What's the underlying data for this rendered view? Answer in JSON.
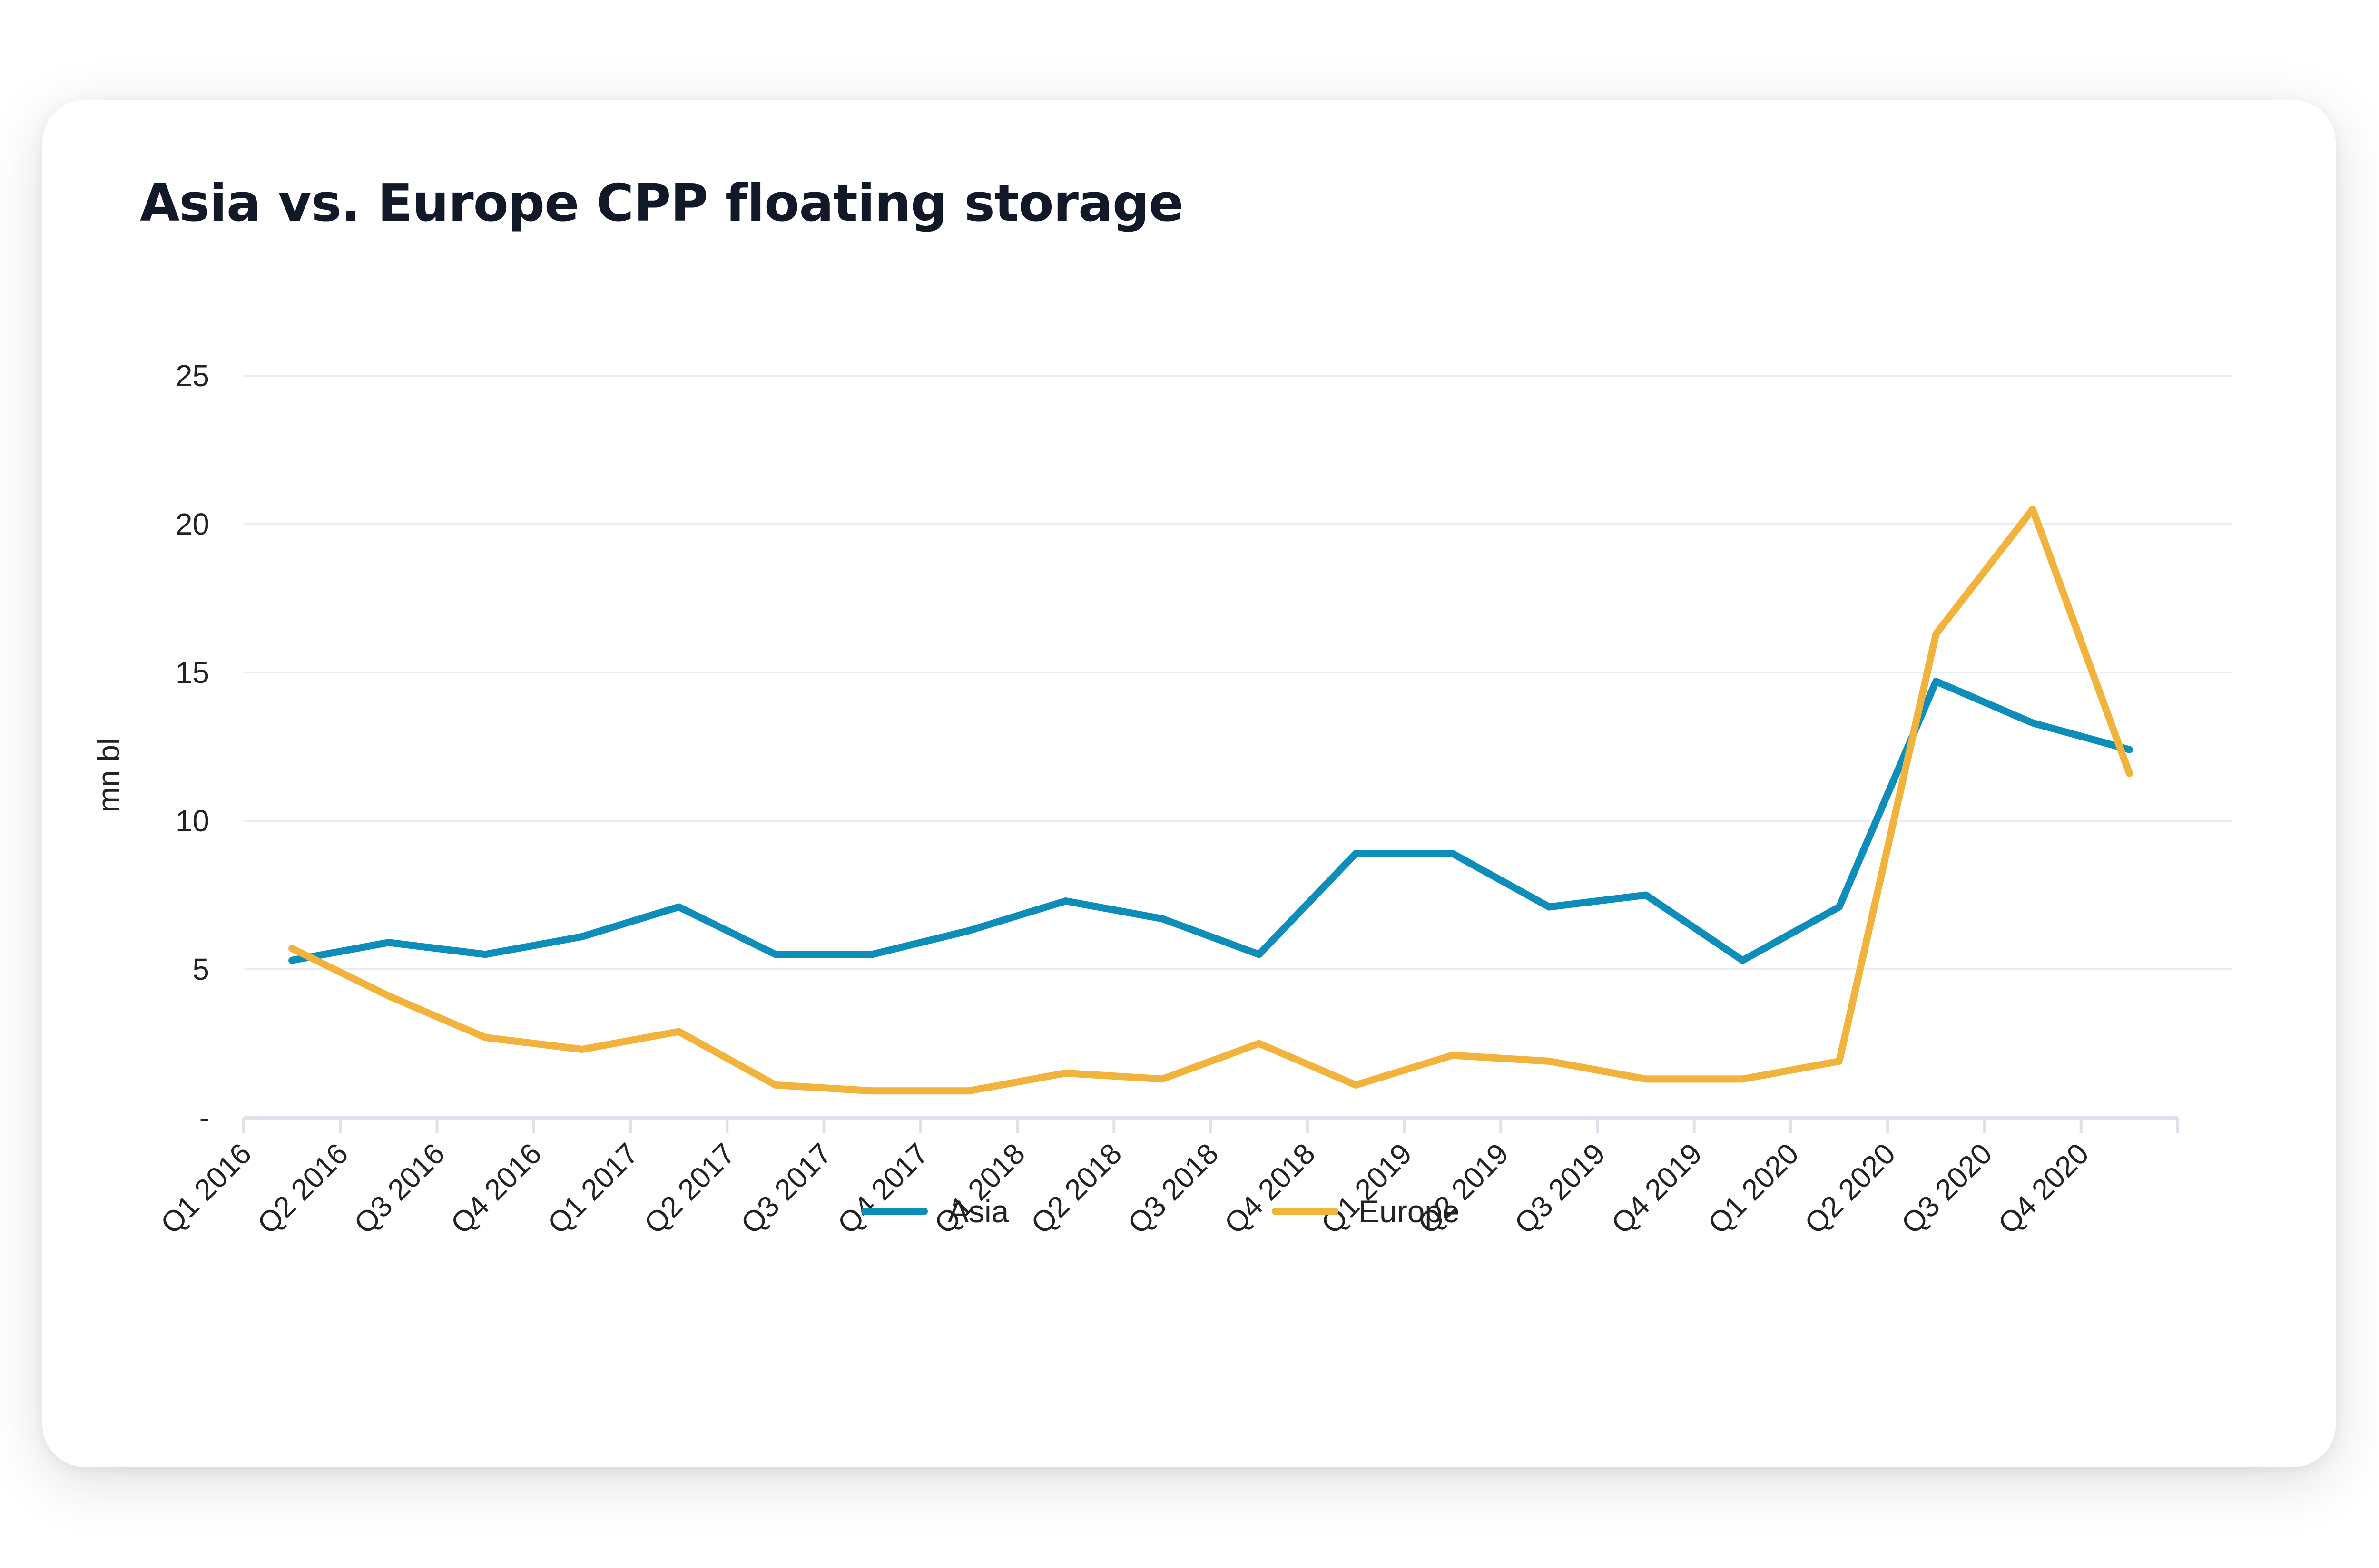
{
  "title": "Asia vs. Europe CPP floating storage",
  "colors": {
    "asia": "#0D8DB9",
    "europe": "#F2B33D",
    "grid": "#EBEDF0",
    "axis": "#DCE2E7",
    "text": "#222222"
  },
  "chart_data": {
    "type": "line",
    "title": "Asia vs. Europe CPP floating storage",
    "xlabel": "",
    "ylabel": "mn bl",
    "ylim": [
      0,
      25
    ],
    "yticks": [
      0,
      5,
      10,
      15,
      20,
      25
    ],
    "ytick_labels": [
      "-",
      "5",
      "10",
      "15",
      "20",
      "25"
    ],
    "grid": true,
    "legend": "bottom",
    "categories": [
      "Q1 2016",
      "Q2 2016",
      "Q3 2016",
      "Q4 2016",
      "Q1 2017",
      "Q2 2017",
      "Q3 2017",
      "Q4 2017",
      "Q1 2018",
      "Q2 2018",
      "Q3 2018",
      "Q4 2018",
      "Q1 2019",
      "Q2 2019",
      "Q3 2019",
      "Q4 2019",
      "Q1 2020",
      "Q2 2020",
      "Q3 2020",
      "Q4 2020"
    ],
    "series": [
      {
        "name": "Asia",
        "values": [
          5.3,
          5.9,
          5.5,
          6.1,
          7.1,
          5.5,
          5.5,
          6.3,
          7.3,
          6.7,
          5.5,
          8.9,
          8.9,
          7.1,
          7.5,
          5.3,
          7.1,
          14.7,
          13.3,
          12.4
        ]
      },
      {
        "name": "Europe",
        "values": [
          5.7,
          4.1,
          2.7,
          2.3,
          2.9,
          1.1,
          0.9,
          0.9,
          1.5,
          1.3,
          2.5,
          1.1,
          2.1,
          1.9,
          1.3,
          1.3,
          1.9,
          16.3,
          20.5,
          11.6
        ]
      }
    ]
  }
}
